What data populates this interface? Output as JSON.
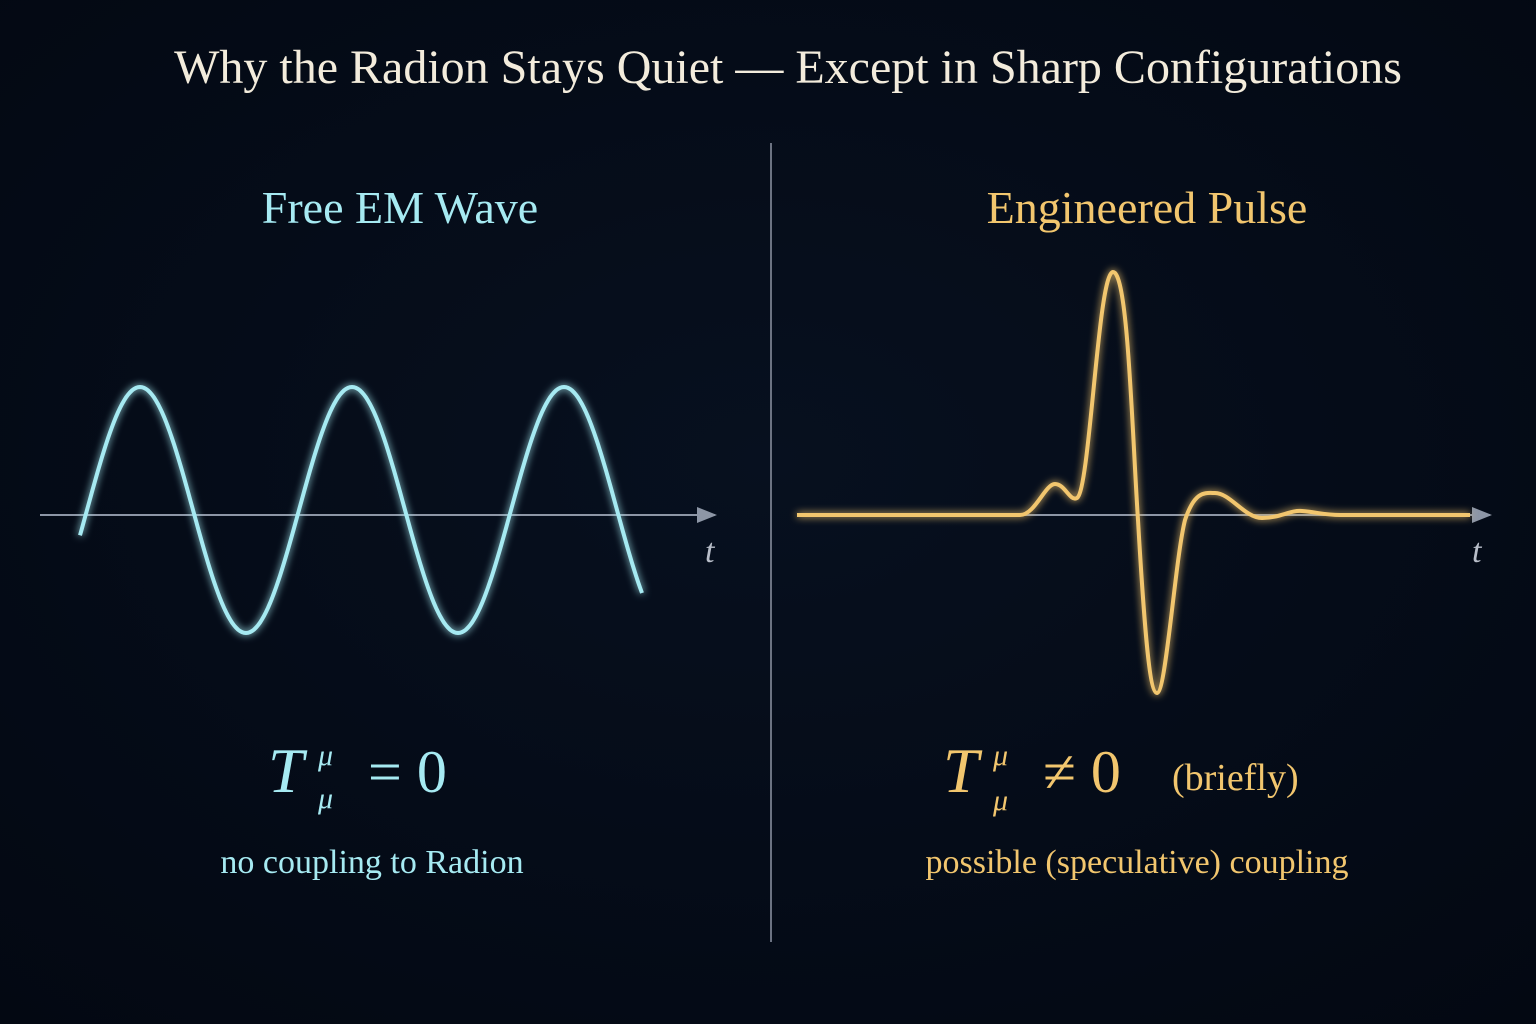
{
  "title": "Why the Radion Stays Quiet — Except in Sharp Configurations",
  "panels": [
    {
      "heading": "Free EM Wave",
      "axis_label": "t",
      "equation": {
        "symbol": "T",
        "superscript": "μ",
        "subscript": "μ",
        "relation": "= 0"
      },
      "caption": "no coupling to Radion"
    },
    {
      "heading": "Engineered Pulse",
      "axis_label": "t",
      "equation": {
        "symbol": "T",
        "superscript": "μ",
        "subscript": "μ",
        "relation": "≠ 0",
        "note": "(briefly)"
      },
      "caption": "possible (speculative) coupling"
    }
  ]
}
